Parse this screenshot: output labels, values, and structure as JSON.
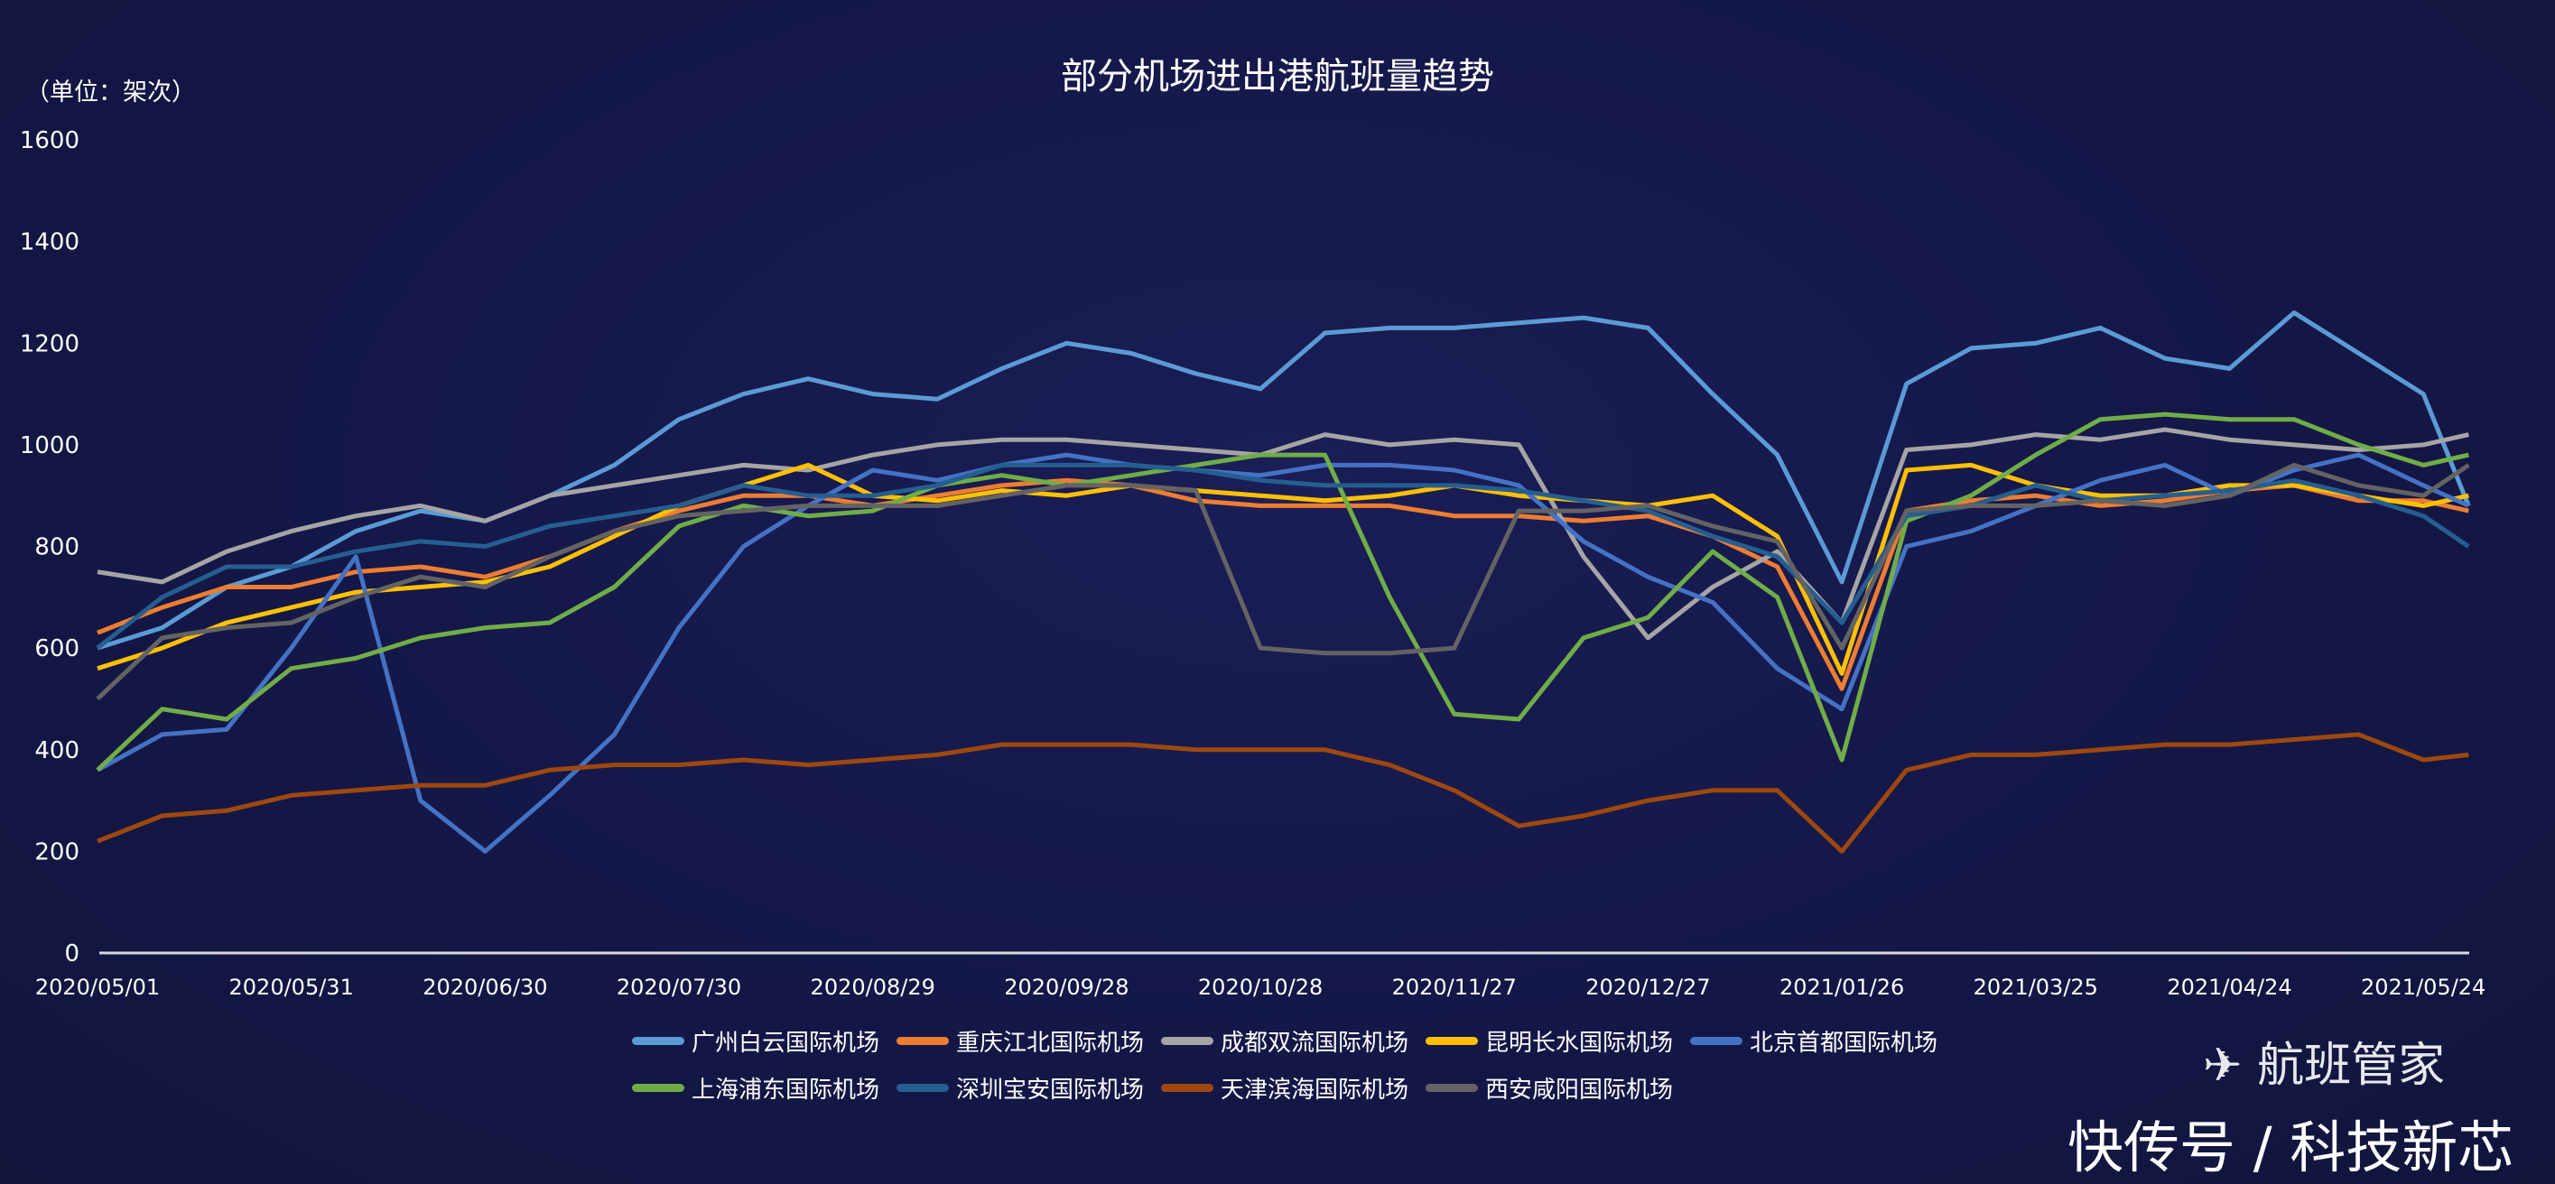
{
  "chart_data": {
    "type": "line",
    "title": "部分机场进出港航班量趋势",
    "ylabel": "（单位：架次）",
    "xlabel": "",
    "ylim": [
      0,
      1600
    ],
    "yticks": [
      0,
      200,
      400,
      600,
      800,
      1000,
      1200,
      1400,
      1600
    ],
    "x_ticks": [
      "2020/05/01",
      "2020/05/31",
      "2020/06/30",
      "2020/07/30",
      "2020/08/29",
      "2020/09/28",
      "2020/10/28",
      "2020/11/27",
      "2020/12/27",
      "2021/01/26",
      "2021/03/25",
      "2021/04/24",
      "2021/05/24"
    ],
    "grid": false,
    "legend_position": "bottom",
    "x": [
      "2020/05/01",
      "2020/05/11",
      "2020/05/21",
      "2020/05/31",
      "2020/06/10",
      "2020/06/20",
      "2020/06/30",
      "2020/07/10",
      "2020/07/20",
      "2020/07/30",
      "2020/08/09",
      "2020/08/19",
      "2020/08/29",
      "2020/09/08",
      "2020/09/18",
      "2020/09/28",
      "2020/10/08",
      "2020/10/18",
      "2020/10/28",
      "2020/11/07",
      "2020/11/17",
      "2020/11/27",
      "2020/12/07",
      "2020/12/17",
      "2020/12/27",
      "2021/01/06",
      "2021/01/16",
      "2021/01/26",
      "2021/03/05",
      "2021/03/15",
      "2021/03/25",
      "2021/04/04",
      "2021/04/14",
      "2021/04/24",
      "2021/05/04",
      "2021/05/14",
      "2021/05/24",
      "2021/05/31"
    ],
    "series": [
      {
        "name": "广州白云国际机场",
        "color": "#5b9bd5",
        "values": [
          600,
          640,
          720,
          760,
          830,
          870,
          850,
          900,
          960,
          1050,
          1100,
          1130,
          1100,
          1090,
          1150,
          1200,
          1180,
          1140,
          1110,
          1220,
          1230,
          1230,
          1240,
          1250,
          1230,
          1100,
          980,
          730,
          1120,
          1190,
          1200,
          1230,
          1170,
          1150,
          1260,
          1180,
          1100,
          880
        ]
      },
      {
        "name": "重庆江北国际机场",
        "color": "#ed7d31",
        "values": [
          630,
          680,
          720,
          720,
          750,
          760,
          740,
          780,
          830,
          870,
          900,
          900,
          880,
          900,
          920,
          930,
          920,
          890,
          880,
          880,
          880,
          860,
          860,
          850,
          860,
          820,
          760,
          520,
          870,
          890,
          900,
          880,
          890,
          910,
          920,
          890,
          890,
          870
        ]
      },
      {
        "name": "成都双流国际机场",
        "color": "#a5a5a5",
        "values": [
          750,
          730,
          790,
          830,
          860,
          880,
          850,
          900,
          920,
          940,
          960,
          950,
          980,
          1000,
          1010,
          1010,
          1000,
          990,
          980,
          1020,
          1000,
          1010,
          1000,
          780,
          620,
          720,
          790,
          650,
          990,
          1000,
          1020,
          1010,
          1030,
          1010,
          1000,
          990,
          1000,
          1020
        ]
      },
      {
        "name": "昆明长水国际机场",
        "color": "#ffc000",
        "values": [
          560,
          600,
          650,
          680,
          710,
          720,
          730,
          760,
          820,
          880,
          920,
          960,
          900,
          890,
          910,
          900,
          920,
          910,
          900,
          890,
          900,
          920,
          900,
          890,
          880,
          900,
          820,
          550,
          950,
          960,
          920,
          900,
          900,
          920,
          920,
          900,
          880,
          900
        ]
      },
      {
        "name": "北京首都国际机场",
        "color": "#4472c4",
        "values": [
          360,
          430,
          440,
          600,
          780,
          300,
          200,
          310,
          430,
          640,
          800,
          880,
          950,
          930,
          960,
          980,
          960,
          950,
          940,
          960,
          960,
          950,
          920,
          810,
          740,
          690,
          560,
          480,
          800,
          830,
          880,
          930,
          960,
          900,
          950,
          980,
          920,
          880
        ]
      },
      {
        "name": "上海浦东国际机场",
        "color": "#70ad47",
        "values": [
          360,
          480,
          460,
          560,
          580,
          620,
          640,
          650,
          720,
          840,
          880,
          860,
          870,
          920,
          940,
          920,
          940,
          960,
          980,
          980,
          700,
          470,
          460,
          620,
          660,
          790,
          700,
          380,
          850,
          900,
          980,
          1050,
          1060,
          1050,
          1050,
          1000,
          960,
          980
        ]
      },
      {
        "name": "深圳宝安国际机场",
        "color": "#255e91",
        "values": [
          600,
          700,
          760,
          760,
          790,
          810,
          800,
          840,
          860,
          880,
          920,
          900,
          900,
          920,
          960,
          960,
          960,
          950,
          930,
          920,
          920,
          920,
          910,
          890,
          870,
          820,
          780,
          650,
          860,
          880,
          920,
          890,
          900,
          910,
          930,
          900,
          860,
          800
        ]
      },
      {
        "name": "天津滨海国际机场",
        "color": "#9e480e",
        "values": [
          220,
          270,
          280,
          310,
          320,
          330,
          330,
          360,
          370,
          370,
          380,
          370,
          380,
          390,
          410,
          410,
          410,
          400,
          400,
          400,
          370,
          320,
          250,
          270,
          300,
          320,
          320,
          200,
          360,
          390,
          390,
          400,
          410,
          410,
          420,
          430,
          380,
          390
        ]
      },
      {
        "name": "西安咸阳国际机场",
        "color": "#636363",
        "values": [
          500,
          620,
          640,
          650,
          700,
          740,
          720,
          780,
          830,
          860,
          870,
          880,
          880,
          880,
          900,
          920,
          920,
          910,
          600,
          590,
          590,
          600,
          870,
          870,
          880,
          840,
          810,
          600,
          870,
          880,
          880,
          890,
          880,
          900,
          960,
          920,
          900,
          960
        ]
      }
    ]
  },
  "watermark": {
    "text": "快传号 / 科技新芯",
    "logo_text": "航班管家"
  }
}
